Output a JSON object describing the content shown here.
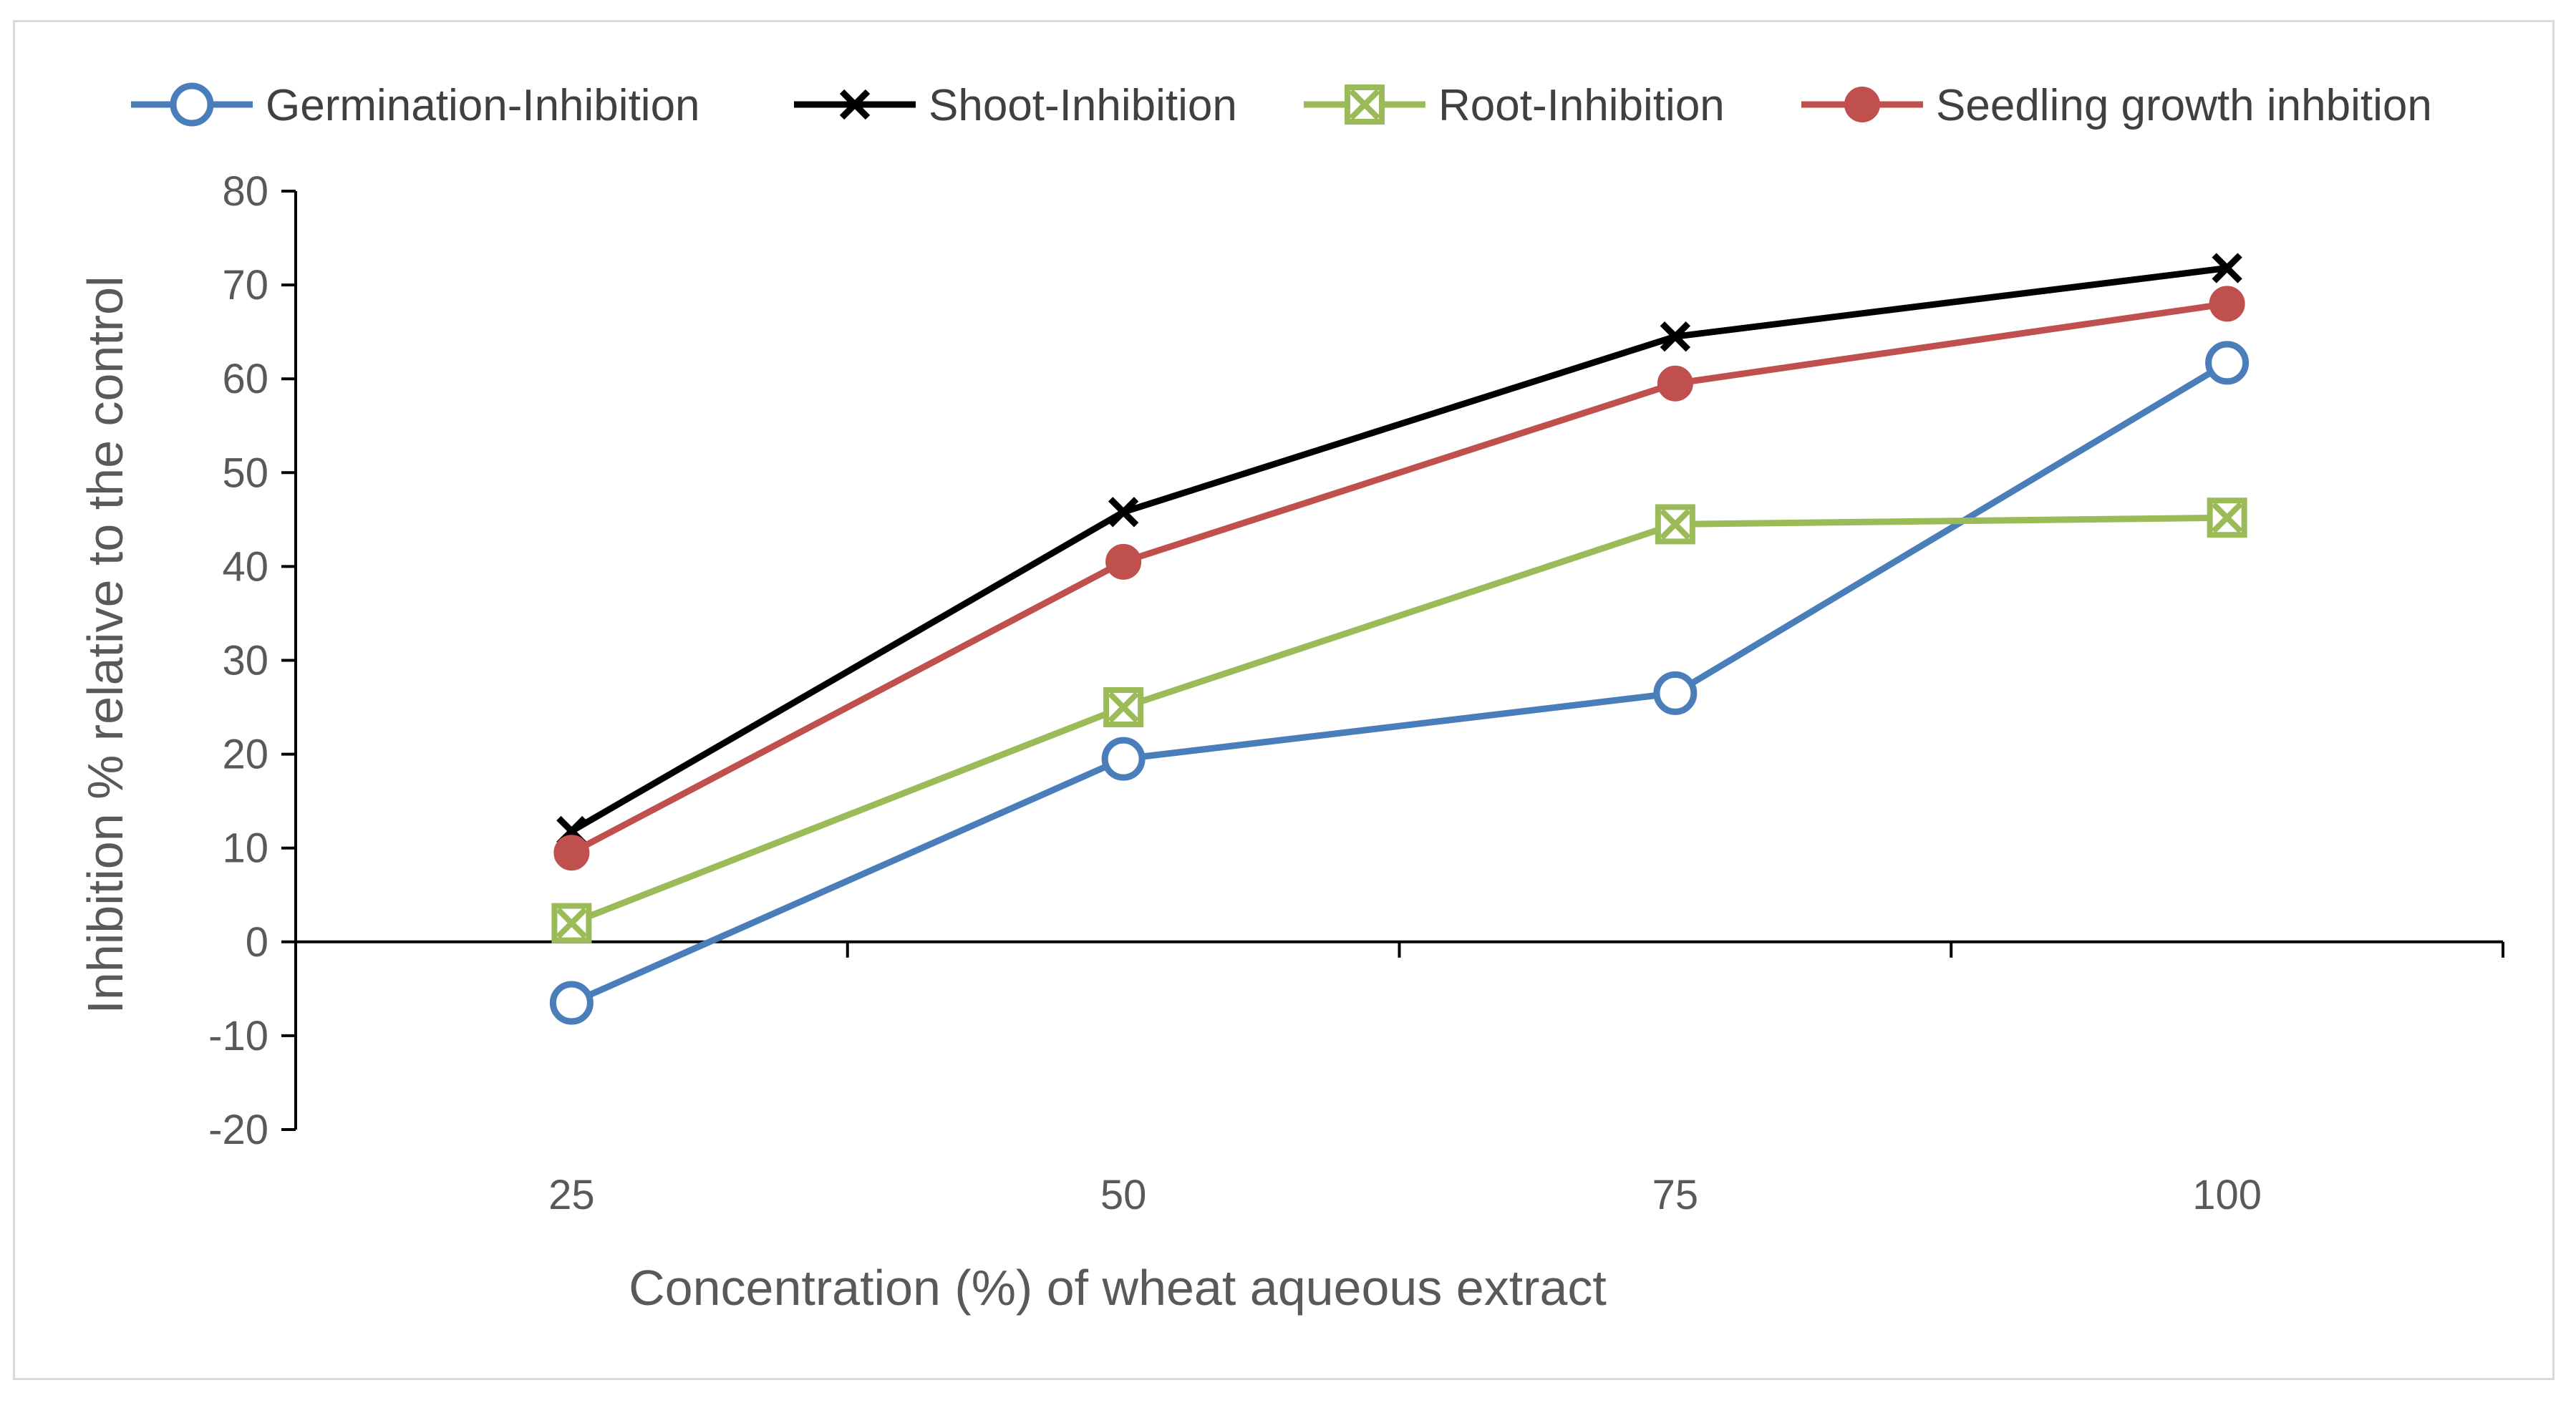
{
  "chart_data": {
    "type": "line",
    "title": "",
    "xlabel": "Concentration (%) of wheat aqueous extract",
    "ylabel": "Inhibition % relative to the control",
    "categories": [
      "25",
      "50",
      "75",
      "100"
    ],
    "ylim": [
      -20,
      80
    ],
    "yticks": [
      -20,
      -10,
      0,
      10,
      20,
      30,
      40,
      50,
      60,
      70,
      80
    ],
    "grid": false,
    "legend_position": "top",
    "series": [
      {
        "name": "Germination-Inhibition",
        "values": [
          -6.5,
          19.5,
          26.5,
          61.7
        ],
        "color": "#4a7ebb",
        "marker": "open-circle"
      },
      {
        "name": "Shoot-Inhibition",
        "values": [
          11.8,
          45.8,
          64.5,
          71.8
        ],
        "color": "#000000",
        "marker": "x"
      },
      {
        "name": "Root-Inhibition",
        "values": [
          2.0,
          25.0,
          44.5,
          45.2
        ],
        "color": "#9bbb59",
        "marker": "boxed-x"
      },
      {
        "name": "Seedling growth inhbition",
        "values": [
          9.5,
          40.5,
          59.5,
          68.0
        ],
        "color": "#c0504d",
        "marker": "filled-circle"
      }
    ]
  }
}
